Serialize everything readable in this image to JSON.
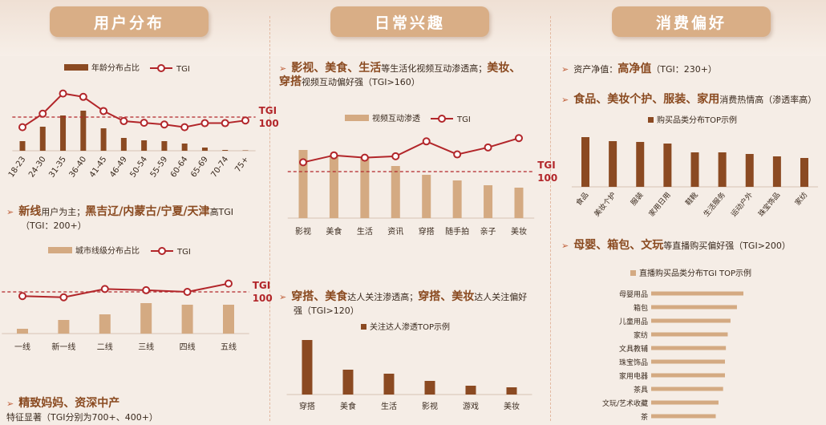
{
  "headers": {
    "user": "用户分布",
    "interest": "日常兴趣",
    "consume": "消费偏好"
  },
  "colors": {
    "bar_dark": "#8b4a22",
    "bar_light": "#d4aa82",
    "line": "#b2262a",
    "ref": "#b2262a",
    "header": "#d9ae86"
  },
  "text": {
    "user_bullet1": {
      "hl": "新线",
      "t1": "用户为主；",
      "hl2": "黑吉辽/内蒙古/宁夏/天津",
      "t2": "高TGI",
      "t3": "（TGI：200+）"
    },
    "user_bullet2": {
      "hl": "精致妈妈、资深中产",
      "t1": "特征显著（TGI分别为700+、400+）"
    },
    "interest_bullet1": {
      "hl": "影视、美食、生活",
      "t1": "等生活化视频互动渗透高；",
      "hl2": "美妆、",
      "hl3": "穿搭",
      "t2": "视频互动偏好强（TGI>160）"
    },
    "interest_bullet2": {
      "hl": "穿搭、美食",
      "t1": "达人关注渗透高；",
      "hl2": "穿搭、美妆",
      "t2": "达人关注偏好",
      "t3": "强（TGI>120）"
    },
    "consume_bullet1": {
      "t0": "资产净值：",
      "hl": "高净值",
      "t1": "（TGI：230+）"
    },
    "consume_bullet2": {
      "hl": "食品、美妆个护、服装、家用",
      "t1": "消费热情高（渗透率高）"
    },
    "consume_bullet3": {
      "hl": "母婴、箱包、文玩",
      "t1": "等直播购买偏好强（TGI>200）"
    }
  },
  "chart_data": [
    {
      "id": "age",
      "type": "bar",
      "legend": [
        "年龄分布占比",
        "TGI"
      ],
      "categories": [
        "18-23",
        "24-30",
        "31-35",
        "36-40",
        "41-45",
        "46-49",
        "50-54",
        "55-59",
        "60-64",
        "65-69",
        "70-74",
        "75+"
      ],
      "series": [
        {
          "name": "年龄分布占比",
          "values": [
            12,
            30,
            44,
            50,
            28,
            16,
            13,
            12,
            9,
            4,
            1,
            0.5
          ]
        },
        {
          "name": "TGI",
          "values": [
            70,
            110,
            170,
            160,
            118,
            88,
            83,
            78,
            70,
            82,
            82,
            90
          ]
        }
      ],
      "ref_label": "TGI",
      "ref_value_label": "100",
      "ref_value": 100
    },
    {
      "id": "city",
      "type": "bar",
      "legend": [
        "城市线级分布占比",
        "TGI"
      ],
      "categories": [
        "一线",
        "新一线",
        "二线",
        "三线",
        "四线",
        "五线"
      ],
      "series": [
        {
          "name": "城市线级分布占比",
          "values": [
            6,
            17,
            24,
            38,
            36,
            36
          ]
        },
        {
          "name": "TGI",
          "values": [
            90,
            87,
            107,
            104,
            100,
            120
          ]
        }
      ],
      "ref_label": "TGI",
      "ref_value_label": "100",
      "ref_value": 100
    },
    {
      "id": "video",
      "type": "bar",
      "legend": [
        "视频互动渗透",
        "TGI"
      ],
      "categories": [
        "影视",
        "美食",
        "生活",
        "资讯",
        "穿搭",
        "随手拍",
        "亲子",
        "美妆"
      ],
      "series": [
        {
          "name": "视频互动渗透",
          "values": [
            85,
            79,
            77,
            65,
            54,
            47,
            41,
            38
          ]
        },
        {
          "name": "TGI",
          "values": [
            120,
            135,
            130,
            133,
            165,
            137,
            152,
            172
          ]
        }
      ],
      "ref_label": "TGI",
      "ref_value_label": "100",
      "ref_value": 100
    },
    {
      "id": "kol",
      "type": "bar",
      "legend": [
        "关注达人渗透TOP示例"
      ],
      "categories": [
        "穿搭",
        "美食",
        "生活",
        "影视",
        "游戏",
        "美妆"
      ],
      "series": [
        {
          "name": "关注达人渗透TOP示例",
          "values": [
            68,
            31,
            26,
            17,
            11,
            9
          ]
        }
      ]
    },
    {
      "id": "buy",
      "type": "bar",
      "legend": [
        "购买品类分布TOP示例"
      ],
      "categories": [
        "食品",
        "美妆个护",
        "服装",
        "家用日用",
        "鞋靴",
        "生活服务",
        "运动户外",
        "珠宝饰品",
        "家纺"
      ],
      "series": [
        {
          "name": "购买品类分布TOP示例",
          "values": [
            62,
            57,
            56,
            54,
            43,
            43,
            41,
            38,
            36
          ]
        }
      ]
    },
    {
      "id": "live",
      "type": "bar",
      "orientation": "horizontal",
      "legend": [
        "直播购买品类分布TGI TOP示例"
      ],
      "categories": [
        "母婴用品",
        "箱包",
        "儿童用品",
        "家纺",
        "文具教辅",
        "珠宝饰品",
        "家用电器",
        "茶具",
        "文玩/艺术收藏",
        "茶"
      ],
      "series": [
        {
          "name": "直播购买品类分布TGI TOP示例",
          "values": [
            100,
            93,
            86,
            83,
            81,
            80,
            80,
            78,
            73,
            70
          ]
        }
      ]
    }
  ]
}
